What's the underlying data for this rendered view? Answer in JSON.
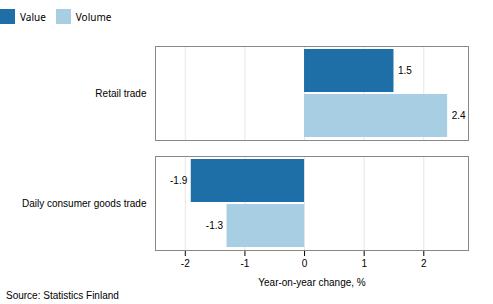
{
  "chart_data": {
    "type": "bar",
    "orientation": "horizontal",
    "categories": [
      "Daily consumer goods trade",
      "Retail trade"
    ],
    "series": [
      {
        "name": "Value",
        "color": "#1E6EA8",
        "values": [
          -1.9,
          1.5
        ]
      },
      {
        "name": "Volume",
        "color": "#A8CEE3",
        "values": [
          -1.3,
          2.4
        ]
      }
    ],
    "xlabel": "Year-on-year change, %",
    "xlim": [
      -2.5,
      2.75
    ],
    "xticks": [
      -2,
      -1,
      0,
      1,
      2
    ],
    "grid": true,
    "legend": "upper left",
    "data_labels": true,
    "source": "Source: Statistics Finland"
  }
}
